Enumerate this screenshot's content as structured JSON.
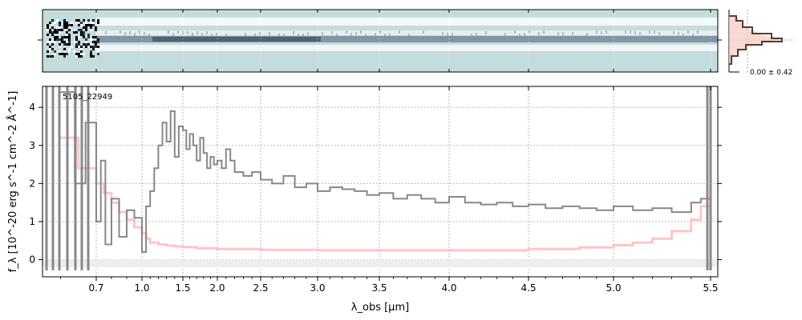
{
  "chart_data": {
    "type": "line",
    "object_label": "5105_22949",
    "xlabel": "λ_obs [μm]",
    "ylabel": "f_λ [10^-20 erg s^-1 cm^-2 Å^-1]",
    "x_ticks": [
      0.7,
      1.0,
      1.5,
      2.0,
      2.5,
      3.0,
      3.5,
      4.0,
      4.5,
      5.0,
      5.5
    ],
    "x_tick_labels": [
      "0.7",
      "1.0",
      "1.5",
      "2.0",
      "2.5",
      "3.0",
      "3.5",
      "4.0",
      "4.5",
      "5.0",
      "5.5"
    ],
    "y_ticks": [
      0,
      1,
      2,
      3,
      4
    ],
    "y_tick_labels": [
      "0",
      "1",
      "2",
      "3",
      "4"
    ],
    "ylim": [
      -0.45,
      4.55
    ],
    "xlim": [
      0.55,
      5.52
    ],
    "grid": true,
    "series": [
      {
        "role": "flux",
        "color": "#888888",
        "x": [
          0.6,
          0.64,
          0.67,
          0.7,
          0.73,
          0.76,
          0.8,
          0.85,
          0.9,
          0.95,
          1.0,
          1.05,
          1.1,
          1.15,
          1.2,
          1.25,
          1.3,
          1.35,
          1.4,
          1.45,
          1.5,
          1.55,
          1.6,
          1.65,
          1.7,
          1.75,
          1.8,
          1.85,
          1.9,
          1.95,
          2.0,
          2.05,
          2.1,
          2.15,
          2.2,
          2.3,
          2.4,
          2.5,
          2.6,
          2.7,
          2.8,
          2.9,
          3.0,
          3.1,
          3.2,
          3.3,
          3.4,
          3.5,
          3.6,
          3.7,
          3.8,
          3.9,
          4.0,
          4.1,
          4.2,
          4.3,
          4.4,
          4.5,
          4.6,
          4.7,
          4.8,
          4.9,
          5.0,
          5.1,
          5.2,
          5.3,
          5.4,
          5.45,
          5.5
        ],
        "y": [
          4.4,
          2.0,
          3.6,
          1.0,
          2.6,
          0.4,
          1.6,
          0.6,
          1.3,
          1.1,
          0.2,
          1.4,
          1.8,
          2.4,
          3.0,
          3.6,
          3.1,
          3.9,
          2.7,
          3.5,
          3.4,
          2.9,
          3.3,
          3.0,
          2.6,
          3.2,
          2.8,
          2.4,
          2.7,
          2.5,
          2.6,
          2.4,
          2.9,
          2.6,
          2.3,
          2.2,
          2.3,
          2.1,
          2.0,
          2.2,
          1.9,
          2.0,
          1.8,
          1.9,
          1.85,
          1.8,
          1.7,
          1.75,
          1.6,
          1.7,
          1.6,
          1.5,
          1.65,
          1.5,
          1.45,
          1.5,
          1.4,
          1.45,
          1.35,
          1.4,
          1.35,
          1.3,
          1.4,
          1.3,
          1.35,
          1.25,
          1.5,
          1.6,
          1.7
        ]
      },
      {
        "role": "uncertainty",
        "color": "#ffb3b3",
        "x": [
          0.6,
          0.65,
          0.7,
          0.75,
          0.8,
          0.85,
          0.9,
          0.95,
          1.0,
          1.05,
          1.1,
          1.2,
          1.3,
          1.4,
          1.5,
          1.7,
          2.0,
          2.5,
          3.0,
          3.5,
          4.0,
          4.5,
          4.8,
          5.0,
          5.1,
          5.2,
          5.3,
          5.4,
          5.45,
          5.5
        ],
        "y": [
          3.2,
          2.4,
          2.0,
          1.75,
          1.5,
          1.25,
          1.05,
          0.85,
          0.7,
          0.55,
          0.45,
          0.4,
          0.37,
          0.35,
          0.33,
          0.3,
          0.28,
          0.26,
          0.25,
          0.25,
          0.25,
          0.28,
          0.32,
          0.38,
          0.45,
          0.55,
          0.75,
          1.05,
          1.4,
          1.9
        ]
      }
    ],
    "histogram_label": "0.00 ± 0.42"
  }
}
